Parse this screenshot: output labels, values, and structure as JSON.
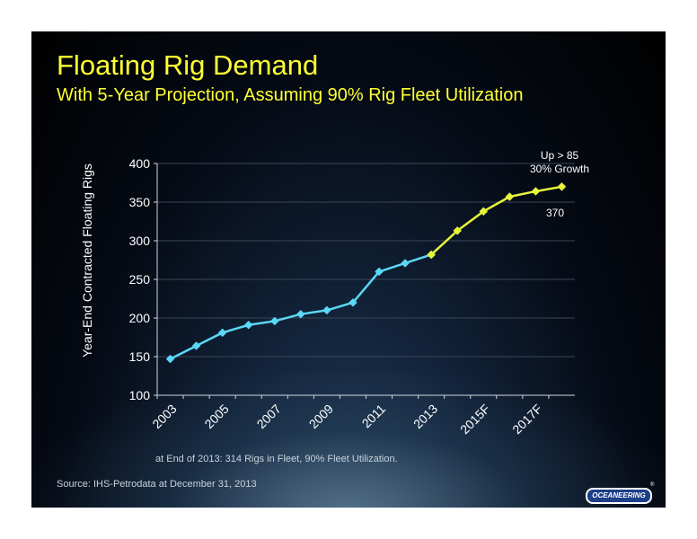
{
  "slide": {
    "title": "Floating Rig Demand",
    "subtitle": "With 5-Year Projection, Assuming 90% Rig Fleet Utilization",
    "note": "at End of 2013:  314 Rigs in Fleet, 90% Fleet Utilization.",
    "source": "Source:  IHS-Petrodata at December 31, 2013",
    "logo": "OCEANEERING",
    "logo_mark": "®"
  },
  "chart_data": {
    "type": "line",
    "ylabel": "Year-End Contracted Floating Rigs",
    "ylim": [
      100,
      400
    ],
    "yticks": [
      "100",
      "150",
      "200",
      "250",
      "300",
      "350",
      "400"
    ],
    "ytick_values": [
      100,
      150,
      200,
      250,
      300,
      350,
      400
    ],
    "x_tick_labels": [
      "2003",
      "2005",
      "2007",
      "2009",
      "2011",
      "2013",
      "2015F",
      "2017F"
    ],
    "grid": true,
    "series": [
      {
        "segment": "historical",
        "color": "#5ad8f5",
        "x": [
          2003,
          2004,
          2005,
          2006,
          2007,
          2008,
          2009,
          2010,
          2011,
          2012,
          2013
        ],
        "values": [
          147,
          164,
          181,
          191,
          196,
          205,
          210,
          220,
          260,
          271,
          282
        ]
      },
      {
        "segment": "projection",
        "color": "#e6f53a",
        "x": [
          2013,
          2014,
          2015,
          2016,
          2017,
          2018
        ],
        "values": [
          282,
          313,
          338,
          357,
          364,
          370
        ]
      }
    ],
    "annotations": [
      {
        "text": "Up > 85"
      },
      {
        "text": "30% Growth"
      },
      {
        "text": "370"
      }
    ]
  }
}
